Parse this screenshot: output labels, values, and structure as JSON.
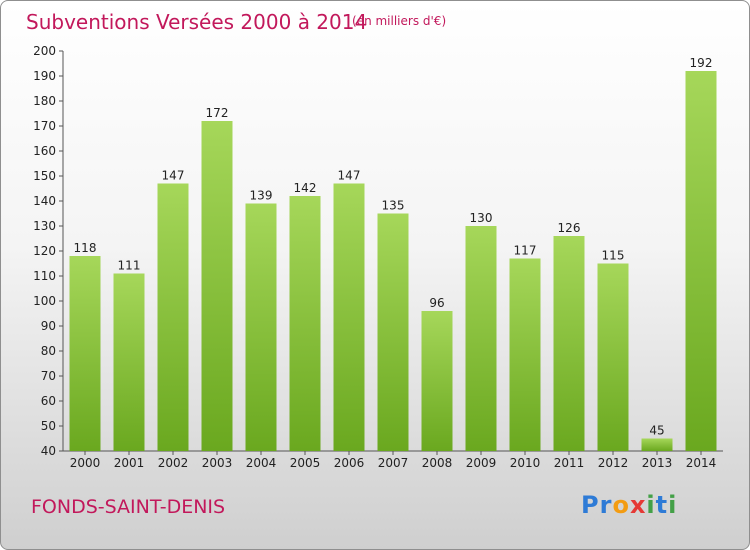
{
  "title": "Subventions Versées 2000 à 2014",
  "unit_note": "(en milliers d'€)",
  "commune": "FONDS-SAINT-DENIS",
  "logo": {
    "letters": [
      "P",
      "r",
      "o",
      "x",
      "i",
      "t",
      "i"
    ],
    "colors": [
      "#2e7bd6",
      "#2e7bd6",
      "#f39c12",
      "#e53935",
      "#43a047",
      "#2e7bd6",
      "#43a047"
    ]
  },
  "colors": {
    "bar_top": "#a6d75a",
    "bar_bottom": "#6aa81f",
    "text_accent": "#c2185b"
  },
  "chart_data": {
    "type": "bar",
    "title": "Subventions Versées 2000 à 2014",
    "categories": [
      "2000",
      "2001",
      "2002",
      "2003",
      "2004",
      "2005",
      "2006",
      "2007",
      "2008",
      "2009",
      "2010",
      "2011",
      "2012",
      "2013",
      "2014"
    ],
    "values": [
      118,
      111,
      147,
      172,
      139,
      142,
      147,
      135,
      96,
      130,
      117,
      126,
      115,
      45,
      192
    ],
    "ylim": [
      40,
      200
    ],
    "yticks": [
      40,
      50,
      60,
      70,
      80,
      90,
      100,
      110,
      120,
      130,
      140,
      150,
      160,
      170,
      180,
      190,
      200
    ],
    "grid": false,
    "legend": "none"
  }
}
